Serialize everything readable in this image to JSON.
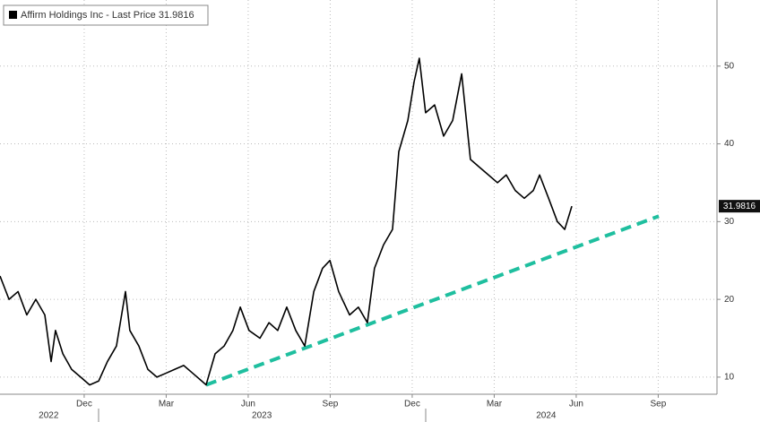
{
  "chart_data": {
    "type": "line",
    "legend": "Affirm Holdings Inc - Last Price 31.9816",
    "x": [
      7.92,
      8.25,
      8.58,
      8.9,
      9.23,
      9.56,
      9.79,
      9.95,
      10.22,
      10.54,
      10.87,
      11.2,
      11.53,
      11.85,
      12.18,
      12.51,
      12.67,
      13,
      13.33,
      13.66,
      13.99,
      14.31,
      14.64,
      14.97,
      15.3,
      15.46,
      15.79,
      16.12,
      16.44,
      16.71,
      17.03,
      17.43,
      17.76,
      18.08,
      18.41,
      18.74,
      19.07,
      19.4,
      19.72,
      19.99,
      20.31,
      20.71,
      21.03,
      21.36,
      21.62,
      21.95,
      22.28,
      22.51,
      22.84,
      23.07,
      23.26,
      23.49,
      23.82,
      24.15,
      24.48,
      24.81,
      25.13,
      25.46,
      25.79,
      26.12,
      26.44,
      26.77,
      27.1,
      27.43,
      27.66,
      27.99,
      28.31,
      28.58,
      28.84
    ],
    "series": [
      {
        "color": "#000000",
        "values": [
          23,
          20,
          21,
          18,
          20,
          18,
          12,
          16,
          13,
          11,
          10,
          9,
          9.5,
          12,
          14,
          21,
          16,
          14,
          11,
          10,
          10.5,
          11,
          11.5,
          10.5,
          9.5,
          9,
          13,
          14,
          16,
          19,
          16,
          15,
          17,
          16,
          19,
          16,
          14,
          21,
          24,
          25,
          21,
          18,
          19,
          17,
          24,
          27,
          29,
          39,
          43,
          48,
          51,
          44,
          45,
          41,
          43,
          49,
          38,
          37,
          36,
          35,
          36,
          34,
          33,
          34,
          36,
          33,
          30,
          29,
          31.9816
        ],
        "value_labels": [
          null,
          null,
          null,
          null,
          null,
          null,
          null,
          null,
          null,
          null,
          null,
          null,
          null,
          null,
          null,
          null,
          null,
          null,
          null,
          null,
          null,
          null,
          null,
          null,
          null,
          null,
          null,
          null,
          null,
          null,
          null,
          null,
          null,
          null,
          null,
          null,
          null,
          null,
          null,
          null,
          null,
          null,
          null,
          null,
          null,
          null,
          null,
          null,
          null,
          null,
          null,
          null,
          null,
          null,
          null,
          null,
          null,
          null,
          null,
          null,
          null,
          null,
          null,
          null,
          null,
          null,
          null,
          null,
          "31.9816"
        ]
      }
    ],
    "trend_line": {
      "color": "#1fbf9f",
      "x": [
        15.46,
        32.02
      ],
      "values": [
        9,
        30.7
      ]
    },
    "xlim": [
      7.92,
      34.15
    ],
    "xticks": [
      {
        "value": 11,
        "label": "Dec"
      },
      {
        "value": 14,
        "label": "Mar"
      },
      {
        "value": 17,
        "label": "Jun"
      },
      {
        "value": 20,
        "label": "Sep"
      },
      {
        "value": 23,
        "label": "Dec"
      },
      {
        "value": 26,
        "label": "Mar"
      },
      {
        "value": 29,
        "label": "Jun"
      },
      {
        "value": 32,
        "label": "Sep"
      }
    ],
    "year_labels": [
      {
        "value": 9.7,
        "label": "2022"
      },
      {
        "value": 17.5,
        "label": "2023"
      },
      {
        "value": 27.9,
        "label": "2024"
      }
    ],
    "ylim": [
      7.8,
      58.5
    ],
    "yticks": [
      10,
      20,
      30,
      40,
      50
    ],
    "grid": true
  }
}
